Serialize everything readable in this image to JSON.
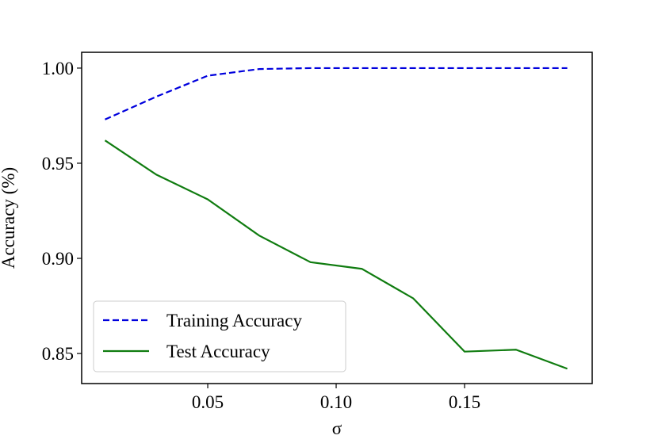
{
  "chart_data": {
    "type": "line",
    "x": [
      0.01,
      0.03,
      0.05,
      0.07,
      0.09,
      0.11,
      0.13,
      0.15,
      0.17,
      0.19
    ],
    "series": [
      {
        "name": "Training Accuracy",
        "color": "#0000dd",
        "dashed": true,
        "values": [
          0.973,
          0.985,
          0.996,
          0.9995,
          1.0,
          1.0,
          1.0,
          1.0,
          1.0,
          1.0
        ]
      },
      {
        "name": "Test Accuracy",
        "color": "#107c10",
        "dashed": false,
        "values": [
          0.962,
          0.944,
          0.931,
          0.912,
          0.898,
          0.8945,
          0.879,
          0.851,
          0.852,
          0.842
        ]
      }
    ],
    "xlabel": "σ",
    "ylabel": "Accuracy (%)",
    "xlim": [
      0.0009,
      0.1997
    ],
    "ylim": [
      0.8342,
      1.0083
    ],
    "xticks": [
      0.05,
      {
        "value": 0.1,
        "label": "0.10"
      },
      0.15
    ],
    "yticks": [
      {
        "value": 0.85,
        "label": "0.85"
      },
      0.95,
      {
        "value": 0.9,
        "label": "0.90"
      },
      {
        "value": 1.0,
        "label": "1.00"
      }
    ],
    "legend": "lower left",
    "grid": false
  }
}
